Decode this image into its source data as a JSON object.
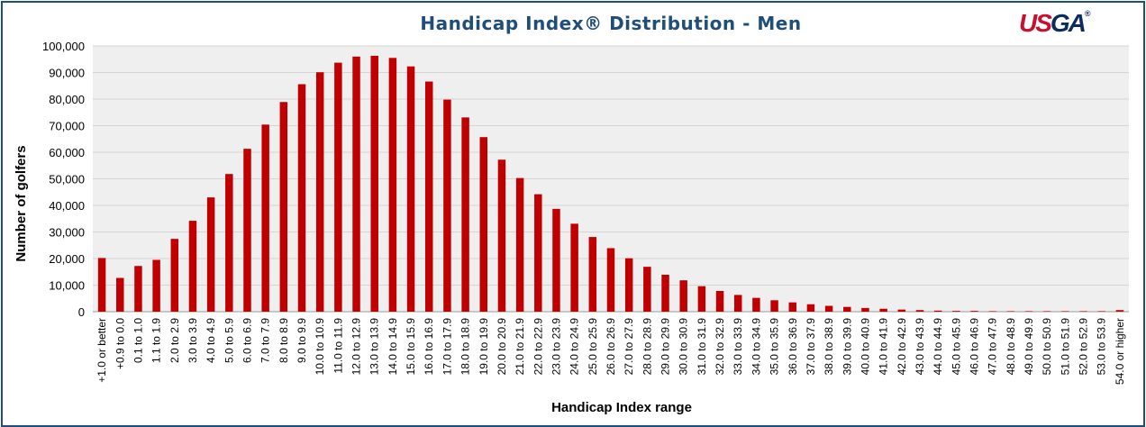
{
  "title": "Handicap Index® Distribution - Men",
  "logo_text": "USGA",
  "chart_data": {
    "type": "bar",
    "title": "Handicap Index® Distribution - Men",
    "xlabel": "Handicap Index range",
    "ylabel": "Number of golfers",
    "ylim": [
      0,
      100000
    ],
    "yticks": [
      "0",
      "10,000",
      "20,000",
      "30,000",
      "40,000",
      "50,000",
      "60,000",
      "70,000",
      "80,000",
      "90,000",
      "100,000"
    ],
    "grid": true,
    "bar_color": "#c00000",
    "categories": [
      "+1.0 or better",
      "+0.9 to 0.0",
      "0.1 to 1.0",
      "1.1 to 1.9",
      "2.0 to 2.9",
      "3.0 to 3.9",
      "4.0 to 4.9",
      "5.0 to 5.9",
      "6.0 to 6.9",
      "7.0 to 7.9",
      "8.0 to 8.9",
      "9.0 to 9.9",
      "10.0 to 10.9",
      "11.0 to 11.9",
      "12.0 to 12.9",
      "13.0 to 13.9",
      "14.0 to 14.9",
      "15.0 to 15.9",
      "16.0 to 16.9",
      "17.0 to 17.9",
      "18.0 to 18.9",
      "19.0 to 19.9",
      "20.0 to 20.9",
      "21.0 to 21.9",
      "22.0 to 22.9",
      "23.0 to 23.9",
      "24.0 to 24.9",
      "25.0 to 25.9",
      "26.0 to 26.9",
      "27.0 to 27.9",
      "28.0 to 28.9",
      "29.0 to 29.9",
      "30.0 to 30.9",
      "31.0 to 31.9",
      "32.0 to 32.9",
      "33.0 to 33.9",
      "34.0 to 34.9",
      "35.0 to 35.9",
      "36.0 to 36.9",
      "37.0 to 37.9",
      "38.0 to 38.9",
      "39.0 to 39.9",
      "40.0 to 40.9",
      "41.0 to 41.9",
      "42.0 to 42.9",
      "43.0 to 43.9",
      "44.0 to 44.9",
      "45.0 to 45.9",
      "46.0 to 46.9",
      "47.0 to 47.9",
      "48.0 to 48.9",
      "49.0 to 49.9",
      "50.0 to 50.9",
      "51.0 to 51.9",
      "52.0 to 52.9",
      "53.0 to 53.9",
      "54.0 or higher"
    ],
    "values": [
      20200,
      12700,
      17200,
      19500,
      27400,
      34200,
      43000,
      51800,
      61300,
      70400,
      78900,
      85600,
      90100,
      93700,
      96000,
      96300,
      95500,
      92300,
      86600,
      79800,
      73100,
      65700,
      57200,
      50300,
      44200,
      38700,
      33100,
      28100,
      23900,
      20100,
      16900,
      13900,
      11800,
      9600,
      7800,
      6300,
      5200,
      4300,
      3500,
      2800,
      2200,
      1800,
      1400,
      1100,
      800,
      600,
      400,
      300,
      300,
      200,
      200,
      200,
      200,
      200,
      200,
      200,
      600
    ]
  }
}
